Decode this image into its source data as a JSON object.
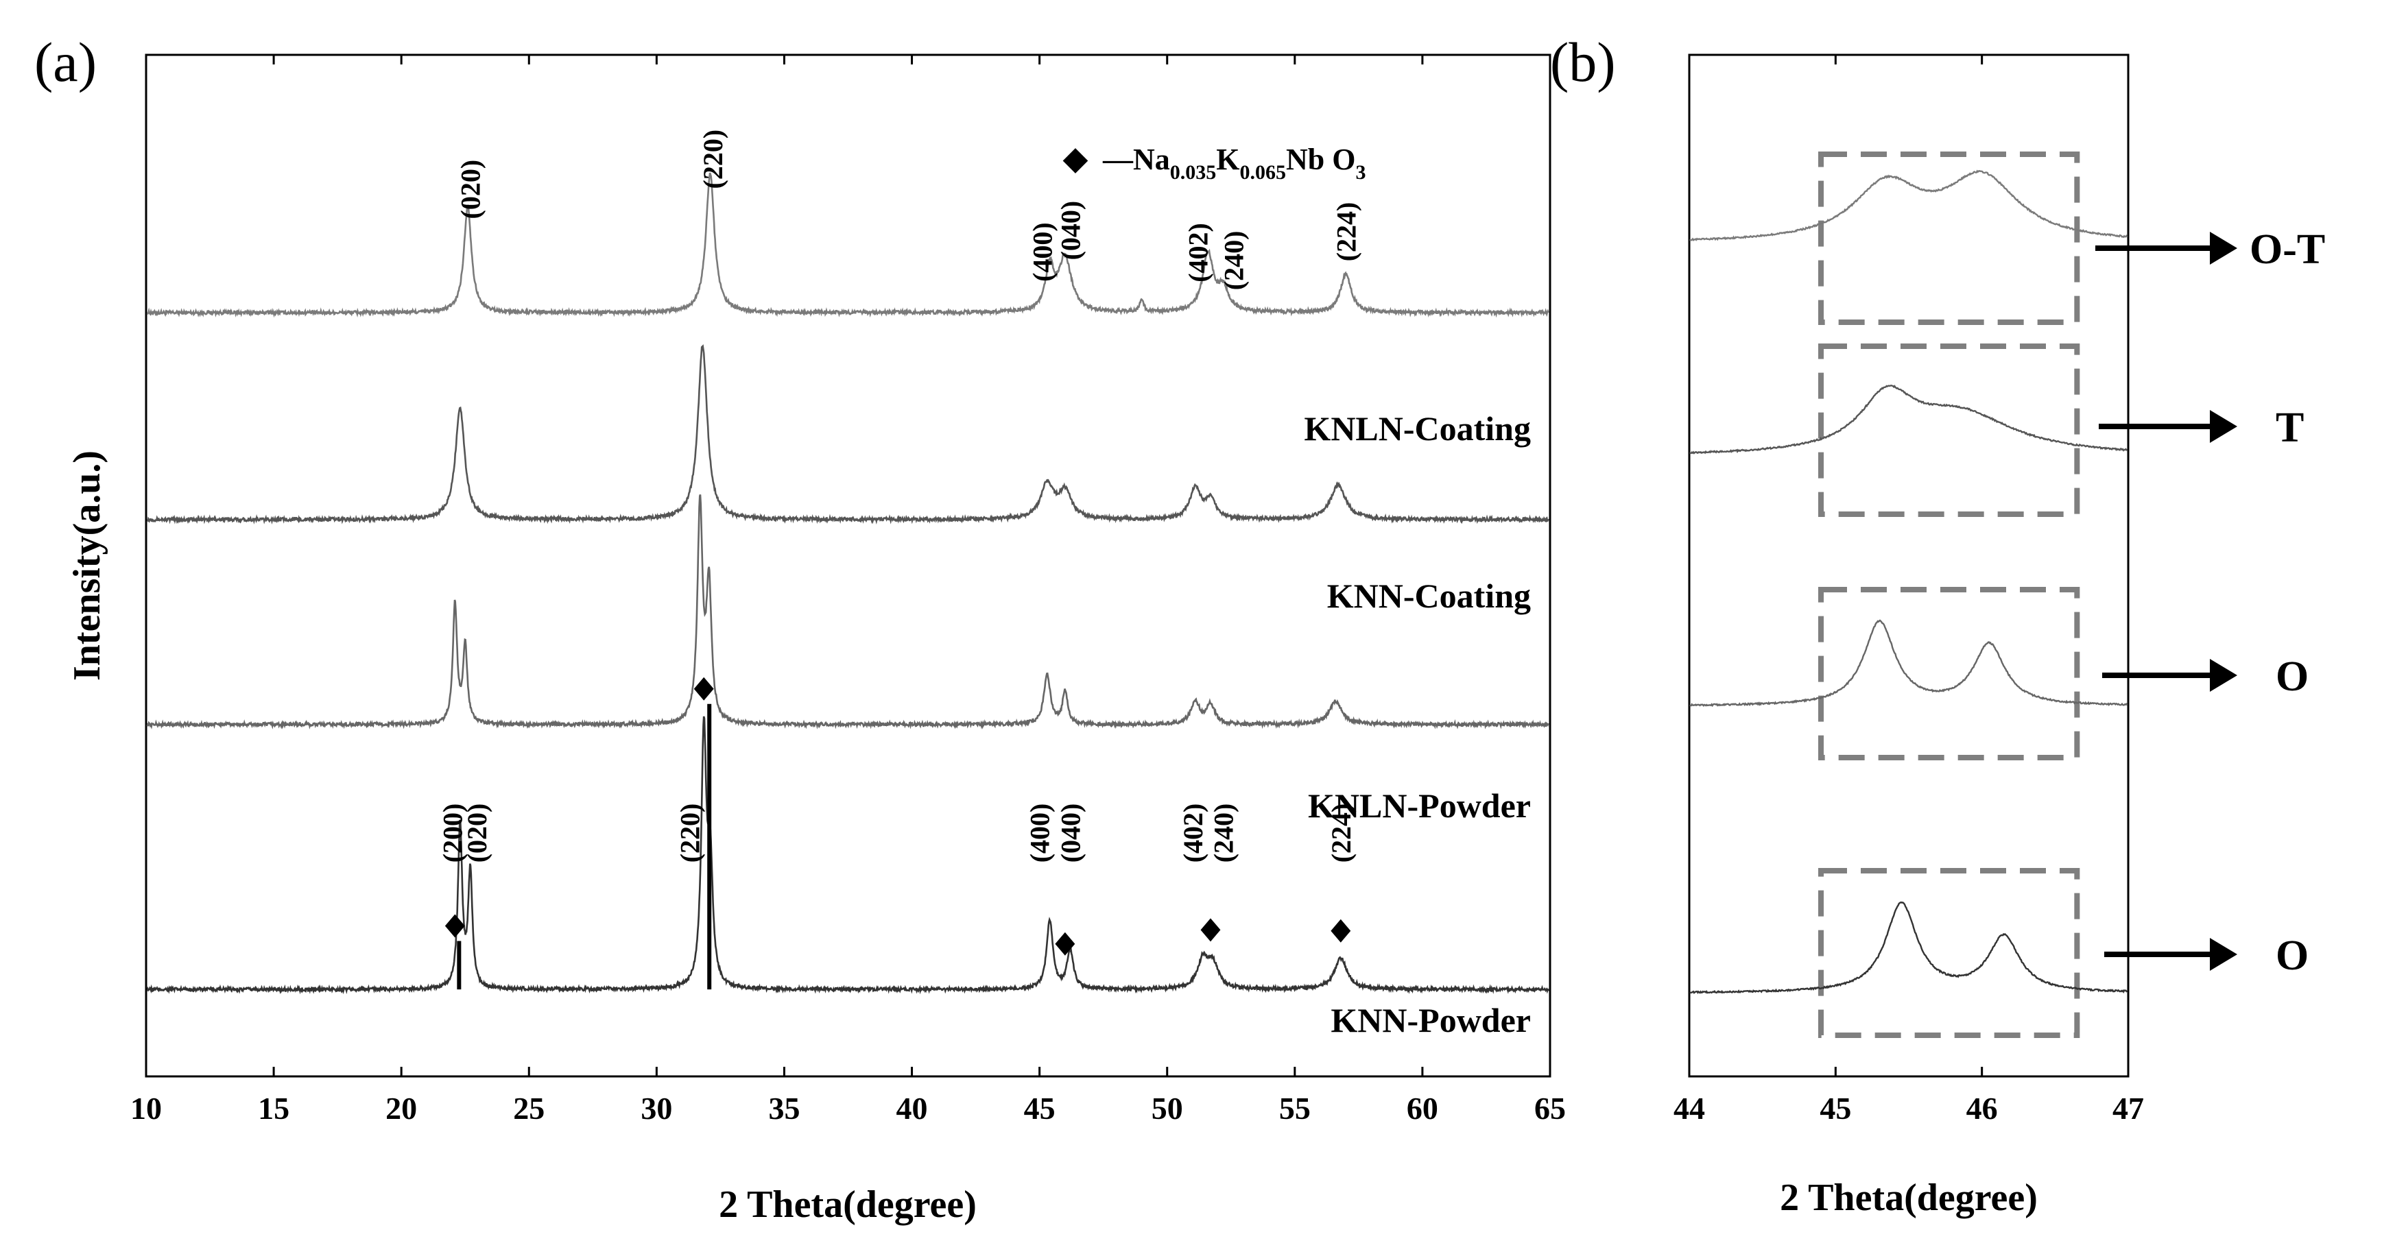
{
  "chart_data": [
    {
      "panel_label": "(a)",
      "type": "line",
      "xlabel": "2 Theta(degree)",
      "ylabel": "Intensity(a.u.)",
      "xlim": [
        10,
        65
      ],
      "xticks": [
        10,
        15,
        20,
        25,
        30,
        35,
        40,
        45,
        50,
        55,
        60,
        65
      ],
      "grid": false,
      "legend": {
        "symbol": "◆",
        "text_prefix": "—Na",
        "sub1": "0.035",
        "mid1": "K",
        "sub2": "0.065",
        "mid2": "Nb O",
        "sub3": "3",
        "placement": "top-right"
      },
      "series": [
        {
          "name": "KNLN-Coating",
          "color": "#7a7a7a",
          "baseline": 3.95,
          "peaks": [
            {
              "x": 22.6,
              "h": 0.55,
              "w": 0.18
            },
            {
              "x": 32.1,
              "h": 0.72,
              "w": 0.2
            },
            {
              "x": 45.4,
              "h": 0.22,
              "w": 0.2
            },
            {
              "x": 46.0,
              "h": 0.28,
              "w": 0.3
            },
            {
              "x": 49.0,
              "h": 0.06,
              "w": 0.1
            },
            {
              "x": 51.6,
              "h": 0.3,
              "w": 0.25
            },
            {
              "x": 52.2,
              "h": 0.12,
              "w": 0.25
            },
            {
              "x": 57.0,
              "h": 0.2,
              "w": 0.25
            }
          ],
          "peak_labels": [
            {
              "x": 22.7,
              "text": "(020)"
            },
            {
              "x": 32.2,
              "text": "(220)"
            },
            {
              "x": 45.1,
              "text": "(400)"
            },
            {
              "x": 46.2,
              "text": "(040)"
            },
            {
              "x": 51.2,
              "text": "(402)"
            },
            {
              "x": 52.6,
              "text": "(240)"
            },
            {
              "x": 57.0,
              "text": "(224)"
            }
          ]
        },
        {
          "name": "KNN-Coating",
          "color": "#555555",
          "baseline": 2.88,
          "peaks": [
            {
              "x": 22.3,
              "h": 0.58,
              "w": 0.22
            },
            {
              "x": 31.8,
              "h": 0.9,
              "w": 0.22
            },
            {
              "x": 45.3,
              "h": 0.18,
              "w": 0.3
            },
            {
              "x": 46.0,
              "h": 0.14,
              "w": 0.3
            },
            {
              "x": 51.1,
              "h": 0.16,
              "w": 0.25
            },
            {
              "x": 51.7,
              "h": 0.1,
              "w": 0.25
            },
            {
              "x": 56.7,
              "h": 0.18,
              "w": 0.35
            }
          ],
          "peak_labels": []
        },
        {
          "name": "KNLN-Powder",
          "color": "#666666",
          "baseline": 1.82,
          "peaks": [
            {
              "x": 22.1,
              "h": 0.62,
              "w": 0.1
            },
            {
              "x": 22.5,
              "h": 0.4,
              "w": 0.1
            },
            {
              "x": 31.7,
              "h": 1.12,
              "w": 0.12
            },
            {
              "x": 32.05,
              "h": 0.7,
              "w": 0.12
            },
            {
              "x": 45.3,
              "h": 0.26,
              "w": 0.15
            },
            {
              "x": 46.0,
              "h": 0.17,
              "w": 0.12
            },
            {
              "x": 51.1,
              "h": 0.12,
              "w": 0.2
            },
            {
              "x": 51.7,
              "h": 0.1,
              "w": 0.2
            },
            {
              "x": 56.6,
              "h": 0.12,
              "w": 0.3
            }
          ],
          "peak_labels": []
        },
        {
          "name": "KNN-Powder",
          "color": "#333333",
          "baseline": 0.45,
          "peaks": [
            {
              "x": 22.3,
              "h": 0.85,
              "w": 0.1
            },
            {
              "x": 22.7,
              "h": 0.6,
              "w": 0.1
            },
            {
              "x": 31.85,
              "h": 1.3,
              "w": 0.12
            },
            {
              "x": 32.1,
              "h": 0.6,
              "w": 0.12
            },
            {
              "x": 45.4,
              "h": 0.35,
              "w": 0.15
            },
            {
              "x": 46.2,
              "h": 0.2,
              "w": 0.15
            },
            {
              "x": 51.4,
              "h": 0.15,
              "w": 0.25
            },
            {
              "x": 51.8,
              "h": 0.12,
              "w": 0.25
            },
            {
              "x": 56.8,
              "h": 0.16,
              "w": 0.3
            }
          ],
          "markers": [
            22.1,
            31.85,
            46.0,
            51.7,
            56.8
          ],
          "peak_labels": [
            {
              "x": 22.0,
              "text": "(200)"
            },
            {
              "x": 22.95,
              "text": "(020)"
            },
            {
              "x": 31.3,
              "text": "(220)"
            },
            {
              "x": 45.0,
              "text": "(400)"
            },
            {
              "x": 46.2,
              "text": "(040)"
            },
            {
              "x": 51.0,
              "text": "(402)"
            },
            {
              "x": 52.2,
              "text": "(240)"
            },
            {
              "x": 56.8,
              "text": "(224)"
            }
          ]
        }
      ]
    },
    {
      "panel_label": "(b)",
      "type": "line",
      "xlabel": "2 Theta(degree)",
      "ylabel": "",
      "xlim": [
        44,
        47
      ],
      "xticks": [
        44,
        45,
        46,
        47
      ],
      "grid": false,
      "highlight_range_x": [
        44.9,
        46.65
      ],
      "series": [
        {
          "name": "KNLN-Coating",
          "label": "O-T",
          "color": "#7a7a7a",
          "baseline": 4.5,
          "peaks": [
            {
              "x": 45.35,
              "h": 0.3,
              "w": 0.28
            },
            {
              "x": 46.0,
              "h": 0.34,
              "w": 0.3
            }
          ]
        },
        {
          "name": "KNN-Coating",
          "label": "T",
          "color": "#555555",
          "baseline": 3.35,
          "peaks": [
            {
              "x": 45.35,
              "h": 0.28,
              "w": 0.22
            },
            {
              "x": 45.85,
              "h": 0.22,
              "w": 0.45
            }
          ]
        },
        {
          "name": "KNLN-Powder",
          "label": "O",
          "color": "#666666",
          "baseline": 2.0,
          "peaks": [
            {
              "x": 45.3,
              "h": 0.45,
              "w": 0.13
            },
            {
              "x": 46.05,
              "h": 0.33,
              "w": 0.13
            }
          ]
        },
        {
          "name": "KNN-Powder",
          "label": "O",
          "color": "#333333",
          "baseline": 0.45,
          "peaks": [
            {
              "x": 45.45,
              "h": 0.48,
              "w": 0.13
            },
            {
              "x": 46.15,
              "h": 0.3,
              "w": 0.13
            }
          ]
        }
      ]
    }
  ]
}
